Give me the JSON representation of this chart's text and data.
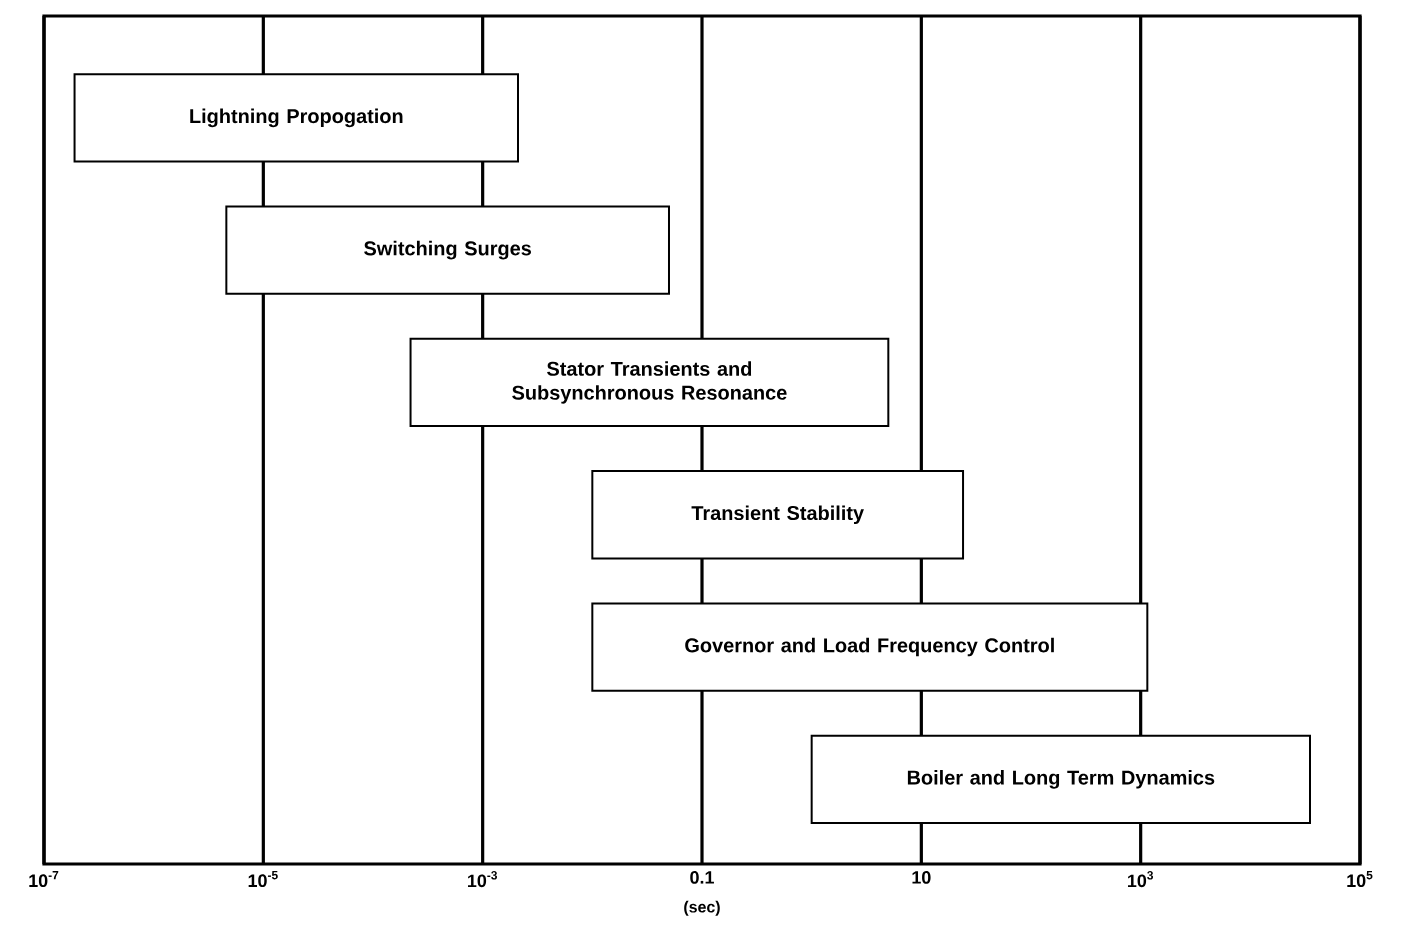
{
  "chart_data": {
    "type": "bar",
    "orientation": "horizontal",
    "log": "x",
    "xlabel": "(sec)",
    "categories": [
      "Lightning Propogation",
      "Switching Surges",
      "Stator Transients and Subsynchronous Resonance",
      "Transient Stability",
      "Governor and Load Frequency Control",
      "Boiler and Long Term Dynamics"
    ],
    "base": [
      1.9e-07,
      4.6e-06,
      0.00022,
      0.01,
      0.01,
      1
    ],
    "values": [
      0.0021,
      0.05,
      5,
      24,
      1150,
      35000
    ],
    "color": "#ffffff",
    "xlim": [
      1e-07,
      100000
    ],
    "xticks": [
      {
        "value": 1e-07,
        "label": "10$^{-7}$"
      },
      {
        "value": 1e-05,
        "label": "10$^{-5}$"
      },
      {
        "value": 0.001,
        "label": "10$^{-3}$"
      },
      0.1,
      10,
      {
        "value": 1000,
        "label": "10$^{3}$"
      },
      {
        "value": 100000,
        "label": "10$^{5}$"
      }
    ],
    "grid": "x",
    "tick_labels": "x"
  }
}
